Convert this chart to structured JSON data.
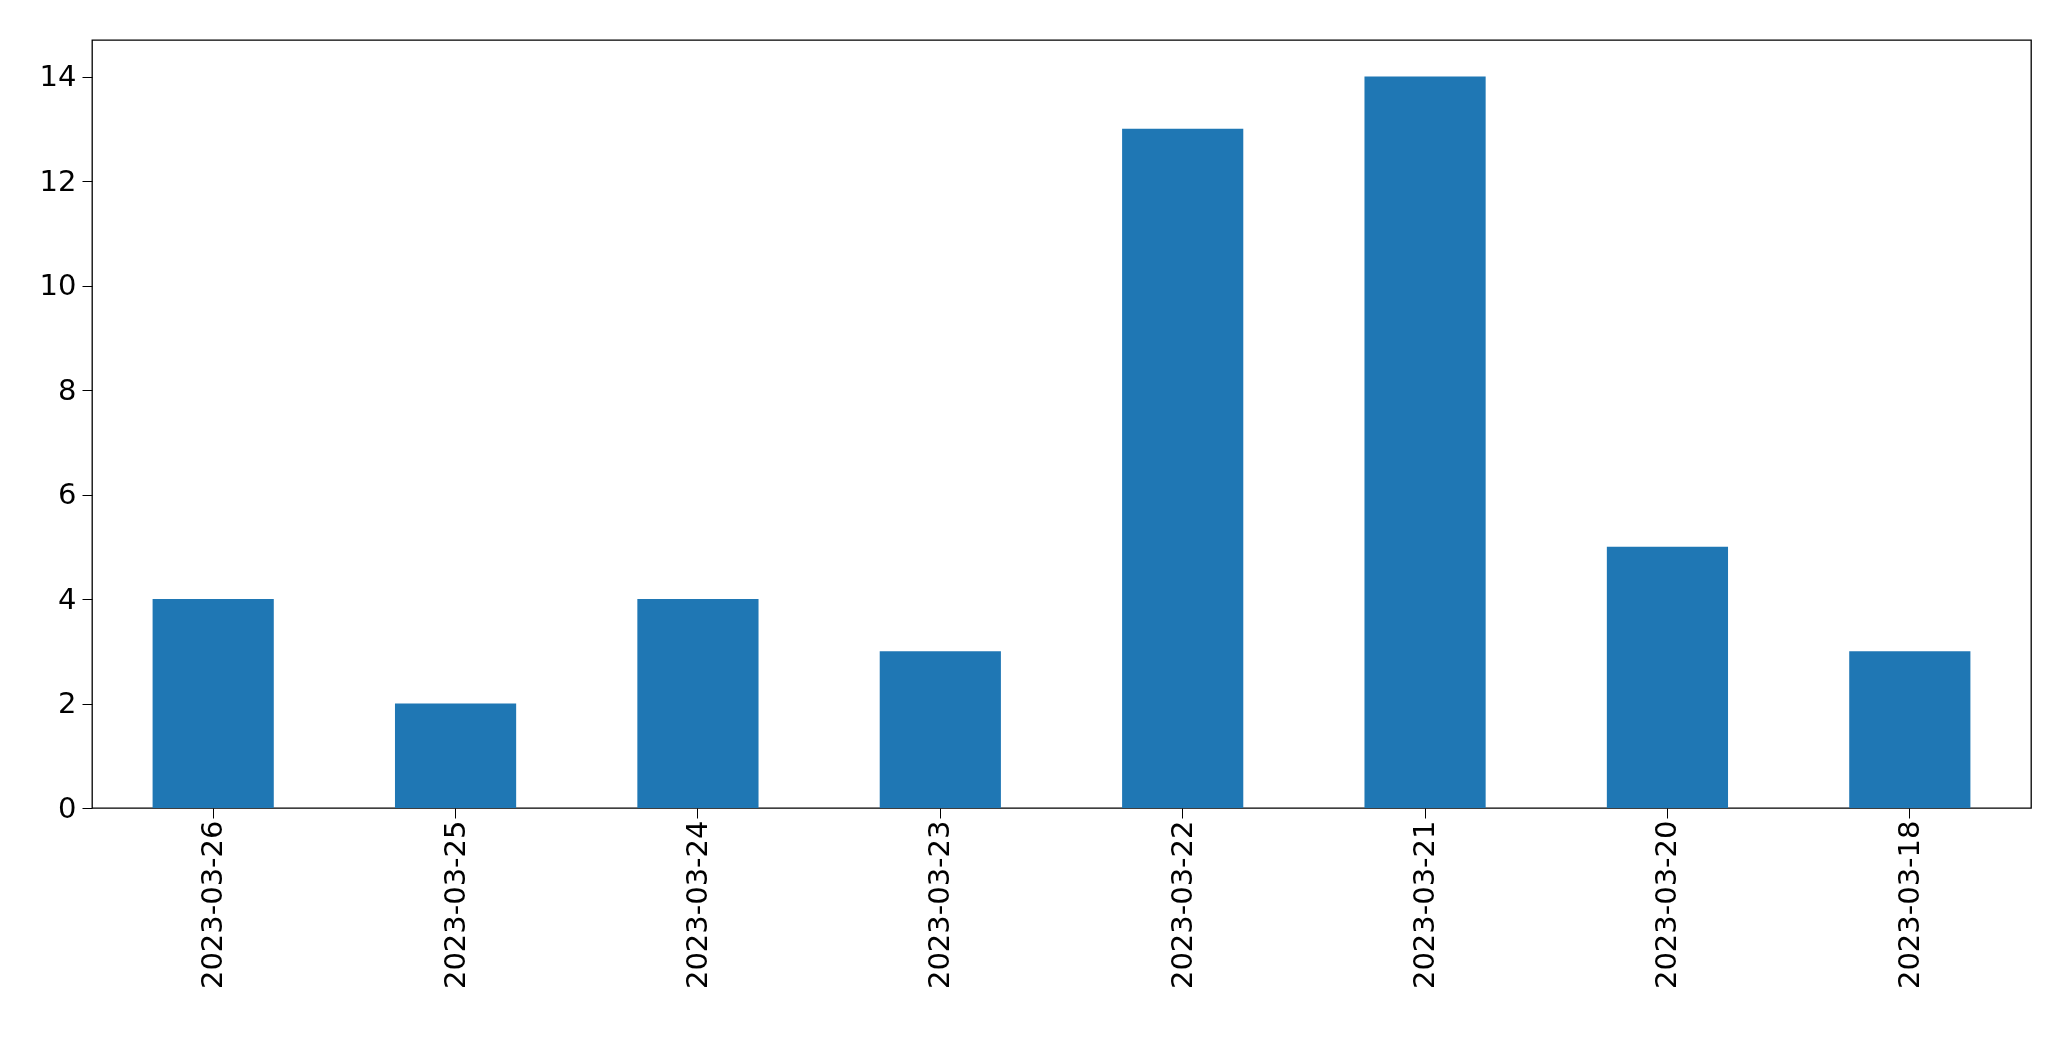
{
  "chart_data": {
    "type": "bar",
    "categories": [
      "2023-03-26",
      "2023-03-25",
      "2023-03-24",
      "2023-03-23",
      "2023-03-22",
      "2023-03-21",
      "2023-03-20",
      "2023-03-18"
    ],
    "values": [
      4,
      2,
      4,
      3,
      13,
      14,
      5,
      3
    ],
    "color": "#1f77b4",
    "ylim": [
      0,
      14.7
    ],
    "yticks": [
      0,
      2,
      4,
      6,
      8,
      10,
      12,
      14
    ],
    "grid": false,
    "legend": false
  }
}
